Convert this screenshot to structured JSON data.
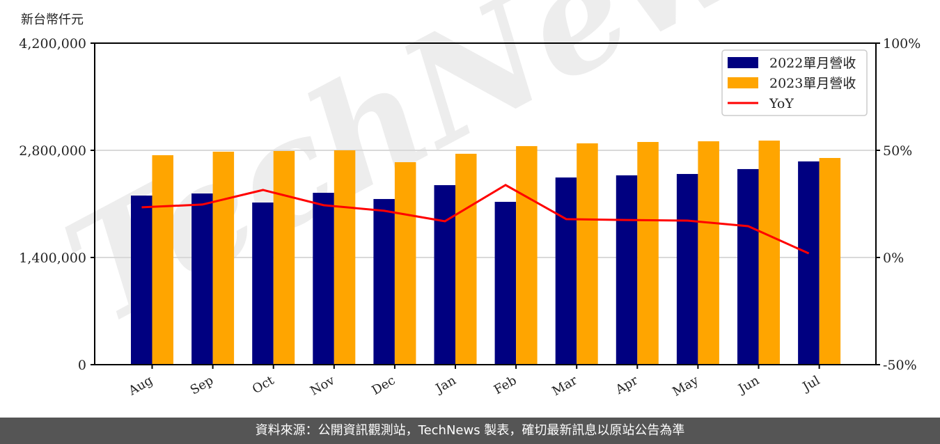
{
  "unit_label": "新台幣仟元",
  "footer": "資料來源：公開資訊觀測站，TechNews 製表，確切最新訊息以原站公告為準",
  "watermark": "TechNews",
  "colors": {
    "series_2022": "#000080",
    "series_2023": "#FFA500",
    "yoy": "#FF0000",
    "grid": "#d9d9d9",
    "footer_bg": "#555555"
  },
  "legend": [
    {
      "label": "2022單月營收",
      "type": "bar",
      "color": "#000080"
    },
    {
      "label": "2023單月營收",
      "type": "bar",
      "color": "#FFA500"
    },
    {
      "label": "YoY",
      "type": "line",
      "color": "#FF0000"
    }
  ],
  "left_axis": {
    "ticks": [
      0,
      1400000,
      2800000,
      4200000
    ],
    "tick_labels": [
      "0",
      "1,400,000",
      "2,800,000",
      "4,200,000"
    ]
  },
  "right_axis": {
    "ticks": [
      -50,
      0,
      50,
      100
    ],
    "tick_labels": [
      "-50%",
      "0%",
      "50%",
      "100%"
    ]
  },
  "chart_data": {
    "type": "bar",
    "title": "",
    "xlabel": "",
    "ylabel": "新台幣仟元",
    "ylim": [
      0,
      4200000
    ],
    "y2lim": [
      -50,
      100
    ],
    "grid": true,
    "legend_position": "upper right",
    "categories": [
      "Aug",
      "Sep",
      "Oct",
      "Nov",
      "Dec",
      "Jan",
      "Feb",
      "Mar",
      "Apr",
      "May",
      "Jun",
      "Jul"
    ],
    "series": [
      {
        "name": "2022單月營收",
        "type": "bar",
        "axis": "left",
        "values": [
          2209000,
          2236000,
          2118000,
          2245000,
          2164000,
          2345000,
          2127000,
          2445000,
          2473000,
          2491000,
          2555000,
          2655000
        ]
      },
      {
        "name": "2023單月營收",
        "type": "bar",
        "axis": "left",
        "values": [
          2736000,
          2782000,
          2791000,
          2800000,
          2645000,
          2755000,
          2855000,
          2891000,
          2909000,
          2918000,
          2927000,
          2700000
        ]
      },
      {
        "name": "YoY",
        "type": "line",
        "axis": "right",
        "unit": "%",
        "values": [
          23.4,
          24.7,
          31.5,
          24.4,
          21.8,
          16.9,
          33.8,
          17.9,
          17.5,
          17.2,
          14.6,
          1.9
        ]
      }
    ]
  }
}
